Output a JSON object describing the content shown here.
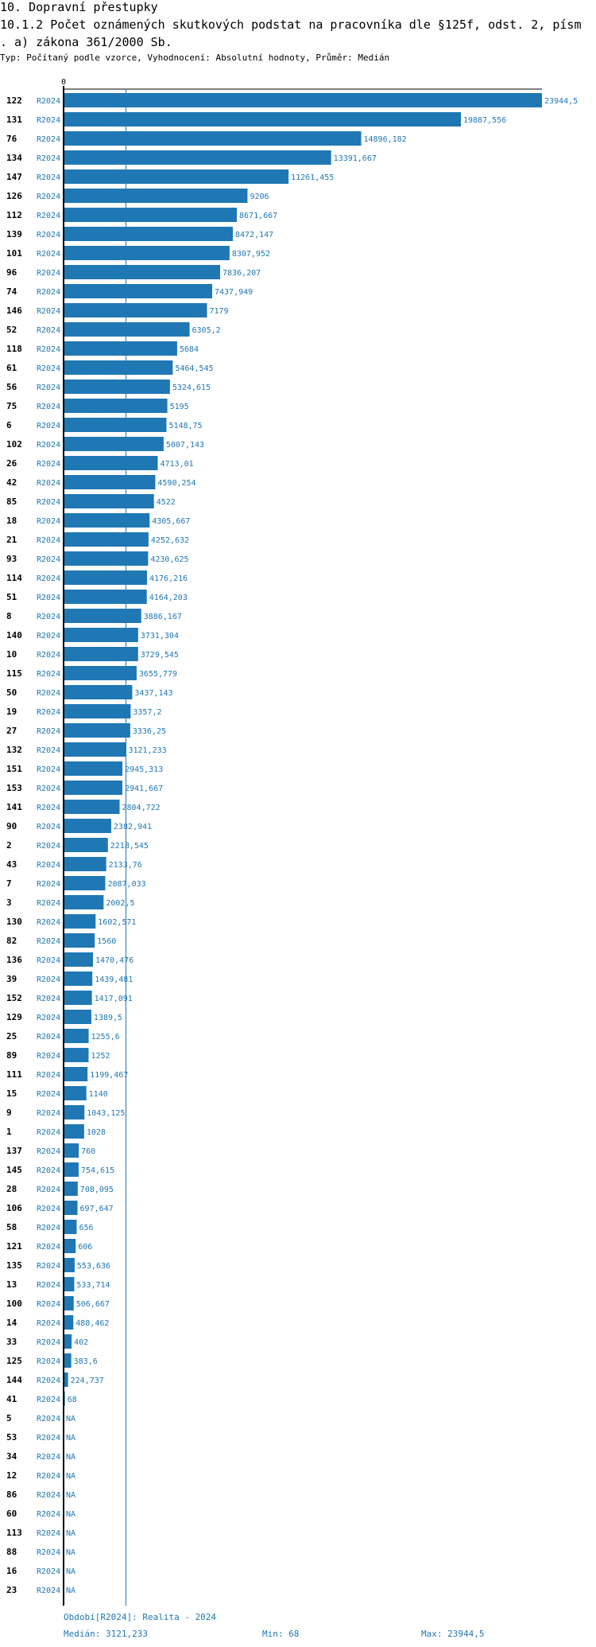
{
  "header": {
    "title": "10. Dopravní přestupky",
    "subtitle_line1": "10.1.2 Počet oznámených skutkových podstat na pracovníka dle §125f, odst. 2, písm",
    "subtitle_line2": ". a) zákona 361/2000 Sb.",
    "type_line": "Typ: Počítaný podle vzorce, Vyhodnocení: Absolutní hodnoty, Průměr: Medián"
  },
  "footer": {
    "period": "Období[R2024]: Realita - 2024",
    "median": "Medián: 3121,233",
    "min": "Min: 68",
    "max": "Max: 23944,5"
  },
  "colors": {
    "bar": "#1f77b4",
    "axis": "#000000",
    "median_line": "#1f77b4",
    "label": "#1f77b4"
  },
  "chart_data": {
    "type": "bar",
    "orientation": "horizontal",
    "axis_zero_label": "0",
    "xlim": [
      0,
      23944.5
    ],
    "median": 3121.233,
    "period_label": "R2024",
    "rows": [
      {
        "id": "122",
        "value": 23944.5,
        "label": "23944,5"
      },
      {
        "id": "131",
        "value": 19887.556,
        "label": "19887,556"
      },
      {
        "id": "76",
        "value": 14896.182,
        "label": "14896,182"
      },
      {
        "id": "134",
        "value": 13391.667,
        "label": "13391,667"
      },
      {
        "id": "147",
        "value": 11261.455,
        "label": "11261,455"
      },
      {
        "id": "126",
        "value": 9206,
        "label": "9206"
      },
      {
        "id": "112",
        "value": 8671.667,
        "label": "8671,667"
      },
      {
        "id": "139",
        "value": 8472.147,
        "label": "8472,147"
      },
      {
        "id": "101",
        "value": 8307.952,
        "label": "8307,952"
      },
      {
        "id": "96",
        "value": 7836.207,
        "label": "7836,207"
      },
      {
        "id": "74",
        "value": 7437.949,
        "label": "7437,949"
      },
      {
        "id": "146",
        "value": 7179,
        "label": "7179"
      },
      {
        "id": "52",
        "value": 6305.2,
        "label": "6305,2"
      },
      {
        "id": "118",
        "value": 5684,
        "label": "5684"
      },
      {
        "id": "61",
        "value": 5464.545,
        "label": "5464,545"
      },
      {
        "id": "56",
        "value": 5324.615,
        "label": "5324,615"
      },
      {
        "id": "75",
        "value": 5195,
        "label": "5195"
      },
      {
        "id": "6",
        "value": 5148.75,
        "label": "5148,75"
      },
      {
        "id": "102",
        "value": 5007.143,
        "label": "5007,143"
      },
      {
        "id": "26",
        "value": 4713.01,
        "label": "4713,01"
      },
      {
        "id": "42",
        "value": 4590.254,
        "label": "4590,254"
      },
      {
        "id": "85",
        "value": 4522,
        "label": "4522"
      },
      {
        "id": "18",
        "value": 4305.667,
        "label": "4305,667"
      },
      {
        "id": "21",
        "value": 4252.632,
        "label": "4252,632"
      },
      {
        "id": "93",
        "value": 4230.625,
        "label": "4230,625"
      },
      {
        "id": "114",
        "value": 4176.216,
        "label": "4176,216"
      },
      {
        "id": "51",
        "value": 4164.203,
        "label": "4164,203"
      },
      {
        "id": "8",
        "value": 3886.167,
        "label": "3886,167"
      },
      {
        "id": "140",
        "value": 3731.304,
        "label": "3731,304"
      },
      {
        "id": "10",
        "value": 3729.545,
        "label": "3729,545"
      },
      {
        "id": "115",
        "value": 3655.779,
        "label": "3655,779"
      },
      {
        "id": "50",
        "value": 3437.143,
        "label": "3437,143"
      },
      {
        "id": "19",
        "value": 3357.2,
        "label": "3357,2"
      },
      {
        "id": "27",
        "value": 3336.25,
        "label": "3336,25"
      },
      {
        "id": "132",
        "value": 3121.233,
        "label": "3121,233"
      },
      {
        "id": "151",
        "value": 2945.313,
        "label": "2945,313"
      },
      {
        "id": "153",
        "value": 2941.667,
        "label": "2941,667"
      },
      {
        "id": "141",
        "value": 2804.722,
        "label": "2804,722"
      },
      {
        "id": "90",
        "value": 2382.941,
        "label": "2382,941"
      },
      {
        "id": "2",
        "value": 2218.545,
        "label": "2218,545"
      },
      {
        "id": "43",
        "value": 2133.76,
        "label": "2133,76"
      },
      {
        "id": "7",
        "value": 2087.033,
        "label": "2087,033"
      },
      {
        "id": "3",
        "value": 2002.5,
        "label": "2002,5"
      },
      {
        "id": "130",
        "value": 1602.571,
        "label": "1602,571"
      },
      {
        "id": "82",
        "value": 1560,
        "label": "1560"
      },
      {
        "id": "136",
        "value": 1470.476,
        "label": "1470,476"
      },
      {
        "id": "39",
        "value": 1439.481,
        "label": "1439,481"
      },
      {
        "id": "152",
        "value": 1417.091,
        "label": "1417,091"
      },
      {
        "id": "129",
        "value": 1389.5,
        "label": "1389,5"
      },
      {
        "id": "25",
        "value": 1255.6,
        "label": "1255,6"
      },
      {
        "id": "89",
        "value": 1252,
        "label": "1252"
      },
      {
        "id": "111",
        "value": 1199.467,
        "label": "1199,467"
      },
      {
        "id": "15",
        "value": 1140,
        "label": "1140"
      },
      {
        "id": "9",
        "value": 1043.125,
        "label": "1043,125"
      },
      {
        "id": "1",
        "value": 1028,
        "label": "1028"
      },
      {
        "id": "137",
        "value": 760,
        "label": "760"
      },
      {
        "id": "145",
        "value": 754.615,
        "label": "754,615"
      },
      {
        "id": "28",
        "value": 708.095,
        "label": "708,095"
      },
      {
        "id": "106",
        "value": 697.647,
        "label": "697,647"
      },
      {
        "id": "58",
        "value": 656,
        "label": "656"
      },
      {
        "id": "121",
        "value": 606,
        "label": "606"
      },
      {
        "id": "135",
        "value": 553.636,
        "label": "553,636"
      },
      {
        "id": "13",
        "value": 533.714,
        "label": "533,714"
      },
      {
        "id": "100",
        "value": 506.667,
        "label": "506,667"
      },
      {
        "id": "14",
        "value": 488.462,
        "label": "488,462"
      },
      {
        "id": "33",
        "value": 402,
        "label": "402"
      },
      {
        "id": "125",
        "value": 383.6,
        "label": "383,6"
      },
      {
        "id": "144",
        "value": 224.737,
        "label": "224,737"
      },
      {
        "id": "41",
        "value": 68,
        "label": "68"
      },
      {
        "id": "5",
        "value": null,
        "label": "NA"
      },
      {
        "id": "53",
        "value": null,
        "label": "NA"
      },
      {
        "id": "34",
        "value": null,
        "label": "NA"
      },
      {
        "id": "12",
        "value": null,
        "label": "NA"
      },
      {
        "id": "86",
        "value": null,
        "label": "NA"
      },
      {
        "id": "60",
        "value": null,
        "label": "NA"
      },
      {
        "id": "113",
        "value": null,
        "label": "NA"
      },
      {
        "id": "88",
        "value": null,
        "label": "NA"
      },
      {
        "id": "16",
        "value": null,
        "label": "NA"
      },
      {
        "id": "23",
        "value": null,
        "label": "NA"
      }
    ]
  }
}
